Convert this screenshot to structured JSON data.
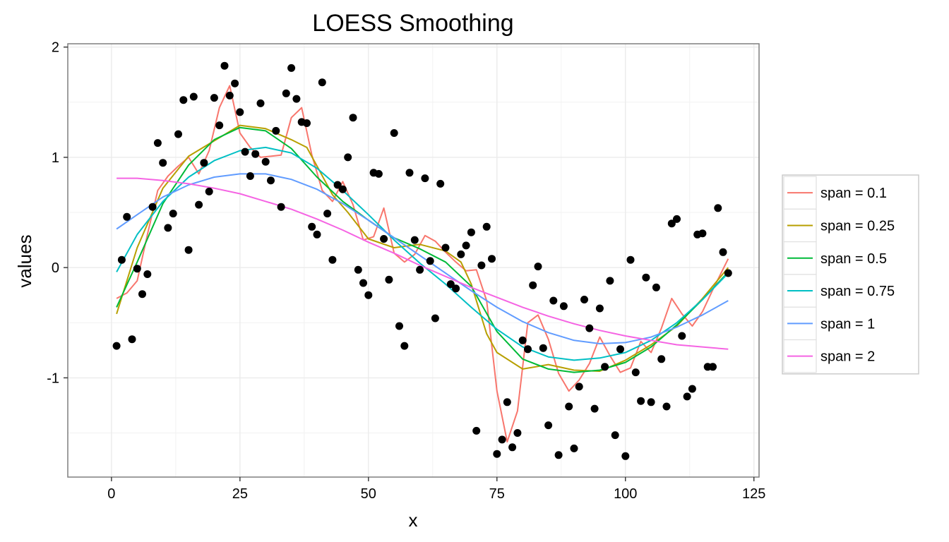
{
  "chart_data": {
    "type": "scatter",
    "title": "LOESS Smoothing",
    "xlabel": "x",
    "ylabel": "values",
    "xlim": [
      -8.5,
      126
    ],
    "ylim": [
      -1.9,
      2.03
    ],
    "x_ticks": [
      0,
      25,
      50,
      75,
      100,
      125
    ],
    "y_ticks": [
      -1,
      0,
      1,
      2
    ],
    "grid": true,
    "legend_position": "right",
    "points": {
      "x": [
        1,
        2,
        3,
        4,
        5,
        6,
        7,
        8,
        9,
        10,
        11,
        12,
        13,
        14,
        15,
        16,
        17,
        18,
        19,
        20,
        21,
        22,
        23,
        24,
        25,
        26,
        27,
        28,
        29,
        30,
        31,
        32,
        33,
        34,
        35,
        36,
        37,
        38,
        39,
        40,
        41,
        42,
        43,
        44,
        45,
        46,
        47,
        48,
        49,
        50,
        51,
        52,
        53,
        54,
        55,
        56,
        57,
        58,
        59,
        60,
        61,
        62,
        63,
        64,
        65,
        66,
        67,
        68,
        69,
        70,
        71,
        72,
        73,
        74,
        75,
        76,
        77,
        78,
        79,
        80,
        81,
        82,
        83,
        84,
        85,
        86,
        87,
        88,
        89,
        90,
        91,
        92,
        93,
        94,
        95,
        96,
        97,
        98,
        99,
        100,
        101,
        102,
        103,
        104,
        105,
        106,
        107,
        108,
        109,
        110,
        111,
        112,
        113,
        114,
        115,
        116,
        117,
        118,
        119,
        120
      ],
      "y": [
        -0.71,
        0.07,
        0.46,
        -0.65,
        -0.01,
        -0.24,
        -0.06,
        0.55,
        1.13,
        0.95,
        0.36,
        0.49,
        1.21,
        1.52,
        0.16,
        1.55,
        0.57,
        0.95,
        0.69,
        1.54,
        1.29,
        1.83,
        1.56,
        1.67,
        1.41,
        1.05,
        0.83,
        1.03,
        1.49,
        0.96,
        0.79,
        1.24,
        0.55,
        1.58,
        1.81,
        1.53,
        1.32,
        1.31,
        0.37,
        0.3,
        1.68,
        0.49,
        0.07,
        0.75,
        0.71,
        1.0,
        1.36,
        -0.02,
        -0.14,
        -0.25,
        0.86,
        0.85,
        0.26,
        -0.11,
        1.22,
        -0.53,
        -0.71,
        0.86,
        0.25,
        -0.02,
        0.81,
        0.06,
        -0.46,
        0.76,
        0.18,
        -0.15,
        -0.19,
        0.12,
        0.2,
        0.32,
        -1.48,
        0.02,
        0.37,
        0.08,
        -1.69,
        -1.56,
        -1.22,
        -1.63,
        -1.5,
        -0.66,
        -0.74,
        -0.16,
        0.01,
        -0.73,
        -1.43,
        -0.3,
        -1.7,
        -0.35,
        -1.26,
        -1.64,
        -1.08,
        -0.29,
        -0.55,
        -1.28,
        -0.37,
        -0.9,
        -0.12,
        -1.52,
        -0.74,
        -1.71,
        0.07,
        -0.95,
        -1.21,
        -0.09,
        -1.22,
        -0.18,
        -0.83,
        -1.26,
        0.4,
        0.44,
        -0.62,
        -1.17,
        -1.1,
        0.3,
        0.31,
        -0.9,
        -0.9,
        0.54,
        0.14,
        -0.05
      ],
      "color": "#000000"
    },
    "series": [
      {
        "name": "span = 0.1",
        "color": "#F8766D",
        "x": [
          1,
          3,
          5,
          7,
          9,
          11,
          13,
          15,
          17,
          19,
          21,
          23,
          25,
          27,
          29,
          31,
          33,
          35,
          37,
          39,
          41,
          43,
          45,
          47,
          49,
          51,
          53,
          55,
          57,
          59,
          61,
          63,
          65,
          67,
          69,
          71,
          73,
          75,
          77,
          79,
          81,
          83,
          85,
          87,
          89,
          91,
          93,
          95,
          97,
          99,
          101,
          103,
          105,
          107,
          109,
          111,
          113,
          115,
          117,
          120
        ],
        "y": [
          -0.28,
          -0.23,
          -0.12,
          0.3,
          0.7,
          0.83,
          0.92,
          1.0,
          0.85,
          1.06,
          1.45,
          1.65,
          1.22,
          1.09,
          1.0,
          1.01,
          1.02,
          1.36,
          1.45,
          1.02,
          0.7,
          0.6,
          0.78,
          0.57,
          0.25,
          0.28,
          0.54,
          0.13,
          0.05,
          0.12,
          0.29,
          0.24,
          0.14,
          0.05,
          -0.03,
          -0.02,
          -0.3,
          -1.12,
          -1.58,
          -1.3,
          -0.5,
          -0.43,
          -0.65,
          -0.96,
          -1.12,
          -1.02,
          -0.87,
          -0.63,
          -0.8,
          -0.95,
          -0.91,
          -0.67,
          -0.77,
          -0.55,
          -0.28,
          -0.42,
          -0.53,
          -0.4,
          -0.2,
          0.08
        ]
      },
      {
        "name": "span = 0.25",
        "color": "#B79F00",
        "x": [
          1,
          5,
          10,
          15,
          20,
          25,
          30,
          35,
          38,
          40,
          43,
          46,
          50,
          55,
          60,
          65,
          68,
          70,
          73,
          75,
          80,
          85,
          90,
          95,
          100,
          105,
          110,
          115,
          120
        ],
        "y": [
          -0.42,
          0.18,
          0.72,
          1.01,
          1.15,
          1.29,
          1.26,
          1.16,
          1.09,
          0.92,
          0.66,
          0.5,
          0.26,
          0.18,
          0.21,
          0.15,
          0.05,
          -0.15,
          -0.6,
          -0.77,
          -0.92,
          -0.88,
          -0.93,
          -0.94,
          -0.84,
          -0.7,
          -0.53,
          -0.28,
          0.0
        ]
      },
      {
        "name": "span = 0.5",
        "color": "#00BA38",
        "x": [
          1,
          5,
          10,
          15,
          20,
          25,
          30,
          35,
          40,
          45,
          50,
          55,
          60,
          65,
          70,
          75,
          80,
          85,
          90,
          95,
          100,
          105,
          110,
          115,
          120
        ],
        "y": [
          -0.36,
          0.05,
          0.58,
          0.93,
          1.16,
          1.27,
          1.24,
          1.08,
          0.82,
          0.6,
          0.43,
          0.27,
          0.17,
          0.05,
          -0.17,
          -0.58,
          -0.83,
          -0.92,
          -0.95,
          -0.93,
          -0.86,
          -0.72,
          -0.52,
          -0.29,
          -0.04
        ]
      },
      {
        "name": "span = 0.75",
        "color": "#00BFC4",
        "x": [
          1,
          5,
          10,
          15,
          20,
          25,
          30,
          35,
          40,
          45,
          50,
          55,
          60,
          65,
          70,
          75,
          80,
          85,
          90,
          95,
          100,
          105,
          110,
          115,
          120
        ],
        "y": [
          -0.04,
          0.3,
          0.6,
          0.82,
          0.97,
          1.06,
          1.09,
          1.04,
          0.9,
          0.7,
          0.48,
          0.25,
          0.04,
          -0.15,
          -0.36,
          -0.56,
          -0.72,
          -0.81,
          -0.84,
          -0.82,
          -0.77,
          -0.66,
          -0.5,
          -0.29,
          -0.05
        ]
      },
      {
        "name": "span = 1",
        "color": "#619CFF",
        "x": [
          1,
          5,
          10,
          15,
          20,
          25,
          30,
          35,
          40,
          45,
          50,
          55,
          60,
          65,
          70,
          75,
          80,
          85,
          90,
          95,
          100,
          105,
          110,
          115,
          120
        ],
        "y": [
          0.35,
          0.48,
          0.64,
          0.75,
          0.82,
          0.85,
          0.85,
          0.8,
          0.71,
          0.58,
          0.43,
          0.27,
          0.11,
          -0.05,
          -0.21,
          -0.36,
          -0.49,
          -0.59,
          -0.66,
          -0.69,
          -0.68,
          -0.63,
          -0.54,
          -0.43,
          -0.3
        ]
      },
      {
        "name": "span = 2",
        "color": "#F564E3",
        "x": [
          1,
          5,
          10,
          15,
          20,
          25,
          30,
          35,
          40,
          45,
          50,
          55,
          60,
          65,
          70,
          75,
          80,
          85,
          90,
          95,
          100,
          105,
          110,
          115,
          120
        ],
        "y": [
          0.81,
          0.81,
          0.79,
          0.76,
          0.72,
          0.67,
          0.6,
          0.53,
          0.44,
          0.34,
          0.23,
          0.13,
          0.02,
          -0.08,
          -0.18,
          -0.27,
          -0.36,
          -0.44,
          -0.51,
          -0.57,
          -0.62,
          -0.66,
          -0.7,
          -0.72,
          -0.74
        ]
      }
    ]
  }
}
